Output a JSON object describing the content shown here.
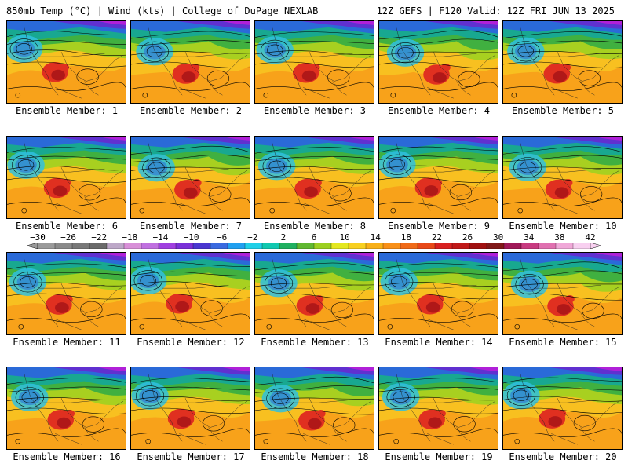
{
  "header": {
    "left": "850mb Temp (°C) | Wind (kts) | College of DuPage NEXLAB",
    "right": "12Z GEFS | F120 Valid: 12Z FRI JUN 13 2025"
  },
  "members": [
    "Ensemble Member: 1",
    "Ensemble Member: 2",
    "Ensemble Member: 3",
    "Ensemble Member: 4",
    "Ensemble Member: 5",
    "Ensemble Member: 6",
    "Ensemble Member: 7",
    "Ensemble Member: 8",
    "Ensemble Member: 9",
    "Ensemble Member: 10",
    "Ensemble Member: 11",
    "Ensemble Member: 12",
    "Ensemble Member: 13",
    "Ensemble Member: 14",
    "Ensemble Member: 15",
    "Ensemble Member: 16",
    "Ensemble Member: 17",
    "Ensemble Member: 18",
    "Ensemble Member: 19",
    "Ensemble Member: 20"
  ],
  "colorbar": {
    "labels": [
      "−30",
      "−26",
      "−22",
      "−18",
      "−14",
      "−10",
      "−6",
      "−2",
      "2",
      "6",
      "10",
      "14",
      "18",
      "22",
      "26",
      "30",
      "34",
      "38",
      "42"
    ],
    "colors": [
      "#9a9a9a",
      "#8a8a8a",
      "#787878",
      "#6a6a6a",
      "#bda8c8",
      "#d890d8",
      "#c070e0",
      "#a040e0",
      "#7a30d8",
      "#4a36d0",
      "#3a6ae0",
      "#20a0f0",
      "#20d0e8",
      "#10c8b0",
      "#20b060",
      "#60b830",
      "#9cd020",
      "#e4e820",
      "#f8d020",
      "#f8b018",
      "#f89018",
      "#f06a18",
      "#e84818",
      "#d82020",
      "#c01818",
      "#a01010",
      "#801818",
      "#a01858",
      "#c83a80",
      "#e070b0",
      "#f0a8d8",
      "#f8d0f0"
    ]
  },
  "palette": {
    "purple": "#b020d8",
    "violet": "#6030d0",
    "blue": "#2a6ad8",
    "cyan": "#30c0e0",
    "teal": "#18a890",
    "green": "#40b040",
    "lime": "#a8d020",
    "yellow": "#f0e020",
    "gold": "#f8c020",
    "orange": "#f89818",
    "red": "#e03020",
    "darkred": "#b01818",
    "contour": "#000000"
  }
}
